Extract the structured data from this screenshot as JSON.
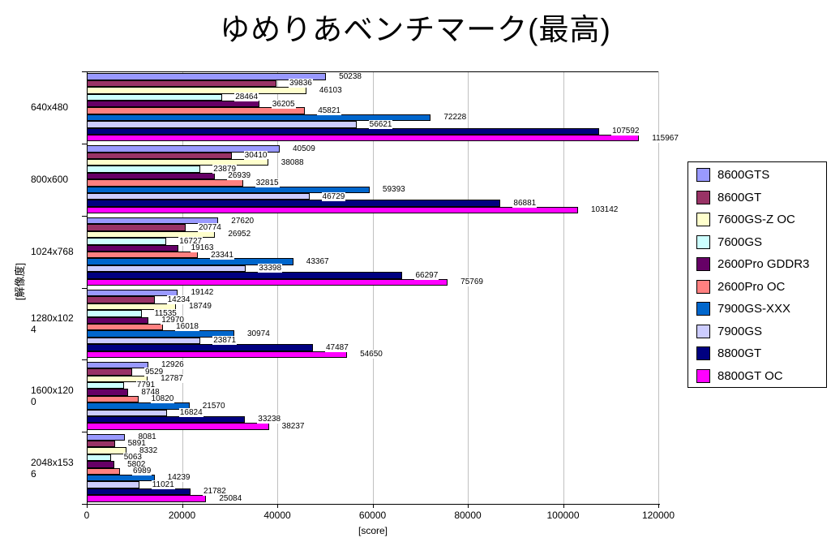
{
  "title": "ゆめりあベンチマーク(最高)",
  "chart_data": {
    "type": "bar",
    "orientation": "horizontal",
    "title": "ゆめりあベンチマーク(最高)",
    "xlabel": "[score]",
    "ylabel": "[解像度]",
    "xlim": [
      0,
      120000
    ],
    "x_ticks": [
      0,
      20000,
      40000,
      60000,
      80000,
      100000,
      120000
    ],
    "grid": true,
    "gridline_color": "#c0c0c0",
    "legend_position": "right",
    "categories": [
      "640x480",
      "800x600",
      "1024x768",
      "1280x1024",
      "1600x1200",
      "2048x1536"
    ],
    "series": [
      {
        "name": "8600GTS",
        "color": "#9999FF",
        "values": [
          50238,
          40509,
          27620,
          19142,
          12926,
          8081
        ]
      },
      {
        "name": "8600GT",
        "color": "#993366",
        "values": [
          39836,
          30410,
          20774,
          14234,
          9529,
          5891
        ]
      },
      {
        "name": "7600GS-Z OC",
        "color": "#FFFFCC",
        "values": [
          46103,
          38088,
          26952,
          18749,
          12787,
          8332
        ]
      },
      {
        "name": "7600GS",
        "color": "#CCFFFF",
        "values": [
          28464,
          23879,
          16727,
          11535,
          7791,
          5063
        ]
      },
      {
        "name": "2600Pro GDDR3",
        "color": "#660066",
        "values": [
          36205,
          26939,
          19163,
          12970,
          8748,
          5802
        ]
      },
      {
        "name": "2600Pro OC",
        "color": "#FF8080",
        "values": [
          45821,
          32815,
          23341,
          16018,
          10820,
          6989
        ]
      },
      {
        "name": "7900GS-XXX",
        "color": "#0066CC",
        "values": [
          72228,
          59393,
          43367,
          30974,
          21570,
          14239
        ]
      },
      {
        "name": "7900GS",
        "color": "#CCCCFF",
        "values": [
          56621,
          46729,
          33398,
          23871,
          16824,
          11021
        ]
      },
      {
        "name": "8800GT",
        "color": "#000080",
        "values": [
          107592,
          86881,
          66297,
          47487,
          33238,
          21782
        ]
      },
      {
        "name": "8800GT OC",
        "color": "#FF00FF",
        "values": [
          115967,
          103142,
          75769,
          54650,
          38237,
          25084
        ]
      }
    ]
  }
}
